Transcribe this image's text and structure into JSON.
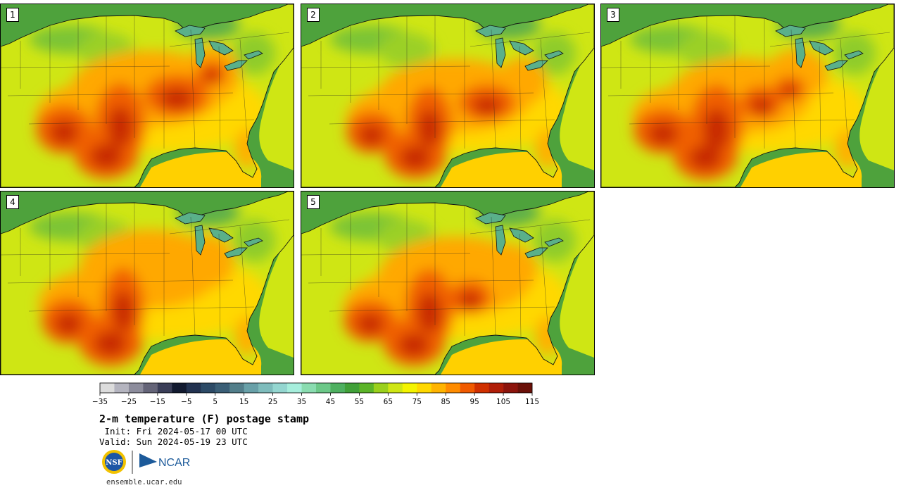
{
  "panels": [
    {
      "label": "1",
      "variant": 0
    },
    {
      "label": "2",
      "variant": 1
    },
    {
      "label": "3",
      "variant": 2
    },
    {
      "label": "4",
      "variant": 3
    },
    {
      "label": "5",
      "variant": 4
    }
  ],
  "colorbar": {
    "ticks": [
      "−35",
      "−25",
      "−15",
      "−5",
      "5",
      "15",
      "25",
      "35",
      "45",
      "55",
      "65",
      "75",
      "85",
      "95",
      "105",
      "115"
    ],
    "colors": [
      "#dcdcdc",
      "#b4b4bf",
      "#8c8c9c",
      "#646478",
      "#3a3e58",
      "#121a30",
      "#223250",
      "#2c4a66",
      "#3a5e76",
      "#527e8a",
      "#68a0a8",
      "#7ebcbc",
      "#94d6d0",
      "#a6eedc",
      "#8adcb0",
      "#6cc888",
      "#4eb060",
      "#40a038",
      "#5cb428",
      "#9ad01c",
      "#cfe614",
      "#f4f400",
      "#ffd800",
      "#ffb400",
      "#ff8c00",
      "#f05a00",
      "#d03000",
      "#b01e08",
      "#8c140c",
      "#6a1008"
    ]
  },
  "title": "2-m temperature (F) postage stamp",
  "init": " Init: Fri 2024-05-17 00 UTC",
  "valid": "Valid: Sun 2024-05-19 23 UTC",
  "logos": {
    "nsf_text": "NSF",
    "ncar_text": "NCAR"
  },
  "site": "ensemble.ucar.edu"
}
